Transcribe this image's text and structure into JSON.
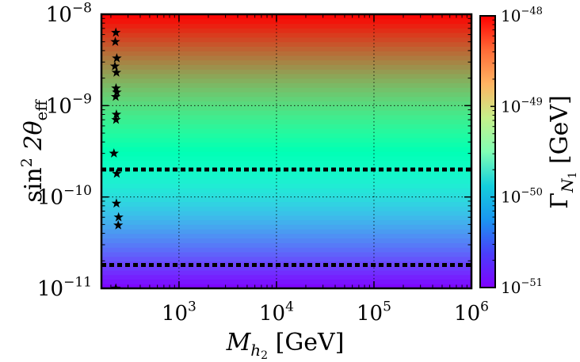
{
  "chart_data": {
    "type": "heatmap",
    "title": "",
    "xlabel": {
      "main": "M",
      "sub": "h",
      "subsub": "2",
      "unit": " [GeV]"
    },
    "ylabel": {
      "main": "sin",
      "sup": "2",
      "mid": " 2θ",
      "sub": "eff"
    },
    "x_scale": "log",
    "y_scale": "log",
    "xlim": [
      160,
      1000000
    ],
    "ylim": [
      1e-11,
      1e-08
    ],
    "x_ticks": [
      {
        "value": 1000,
        "base": "10",
        "exp": "3"
      },
      {
        "value": 10000,
        "base": "10",
        "exp": "4"
      },
      {
        "value": 100000,
        "base": "10",
        "exp": "5"
      },
      {
        "value": 1000000,
        "base": "10",
        "exp": "6"
      }
    ],
    "y_ticks": [
      {
        "value": 1e-08,
        "base": "10",
        "exp": "−8"
      },
      {
        "value": 1e-09,
        "base": "10",
        "exp": "−9"
      },
      {
        "value": 1e-10,
        "base": "10",
        "exp": "−10"
      },
      {
        "value": 1e-11,
        "base": "10",
        "exp": "−11"
      }
    ],
    "grid": true,
    "colorbar": {
      "label": {
        "main": "Γ",
        "sub": "N",
        "subsub": "1",
        "unit": " [GeV]"
      },
      "scale": "log",
      "range": [
        1e-51,
        1e-48
      ],
      "colormap": "rainbow",
      "ticks": [
        {
          "value": 1e-48,
          "base": "10",
          "exp": "−48"
        },
        {
          "value": 1e-49,
          "base": "10",
          "exp": "−49"
        },
        {
          "value": 1e-50,
          "base": "10",
          "exp": "−50"
        },
        {
          "value": 1e-51,
          "base": "10",
          "exp": "−51"
        }
      ]
    },
    "field": {
      "description_rule": "Gamma proportional to sin^2 2theta, independent of M_h2",
      "gamma_at_ymin": 1e-51,
      "gamma_at_ymax": 1e-48
    },
    "horizontal_lines": [
      {
        "y": 2e-10,
        "style": "dotted",
        "color": "#000000"
      },
      {
        "y": 1.8e-11,
        "style": "dotted",
        "color": "#000000"
      }
    ],
    "star_points": [
      {
        "x": 225,
        "y": 6.3e-09
      },
      {
        "x": 222,
        "y": 5e-09
      },
      {
        "x": 230,
        "y": 3.3e-09
      },
      {
        "x": 220,
        "y": 2.7e-09
      },
      {
        "x": 228,
        "y": 2.3e-09
      },
      {
        "x": 226,
        "y": 1.55e-09
      },
      {
        "x": 230,
        "y": 1.4e-09
      },
      {
        "x": 224,
        "y": 1.25e-09
      },
      {
        "x": 228,
        "y": 8e-10
      },
      {
        "x": 226,
        "y": 7e-10
      },
      {
        "x": 215,
        "y": 3e-10
      },
      {
        "x": 230,
        "y": 1.8e-10
      },
      {
        "x": 228,
        "y": 8.5e-11
      },
      {
        "x": 240,
        "y": 6e-11
      },
      {
        "x": 238,
        "y": 4.9e-11
      },
      {
        "x": 225,
        "y": 1e-11
      }
    ]
  }
}
